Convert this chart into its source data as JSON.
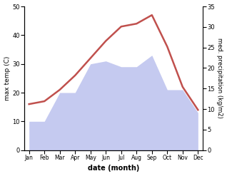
{
  "months": [
    "Jan",
    "Feb",
    "Mar",
    "Apr",
    "May",
    "Jun",
    "Jul",
    "Aug",
    "Sep",
    "Oct",
    "Nov",
    "Dec"
  ],
  "max_temp": [
    16,
    17,
    21,
    26,
    32,
    38,
    43,
    44,
    47,
    36,
    22,
    14
  ],
  "precipitation": [
    10,
    10,
    20,
    20,
    30,
    31,
    29,
    29,
    33,
    21,
    21,
    13
  ],
  "temp_color": "#c0504d",
  "precip_fill_color": "#c5caf0",
  "ylabel_left": "max temp (C)",
  "ylabel_right": "med. precipitation (kg/m2)",
  "xlabel": "date (month)",
  "ylim_left": [
    0,
    50
  ],
  "ylim_right": [
    0,
    35
  ],
  "yticks_left": [
    0,
    10,
    20,
    30,
    40,
    50
  ],
  "yticks_right": [
    0,
    5,
    10,
    15,
    20,
    25,
    30,
    35
  ],
  "background_color": "#ffffff",
  "line_width": 1.8
}
